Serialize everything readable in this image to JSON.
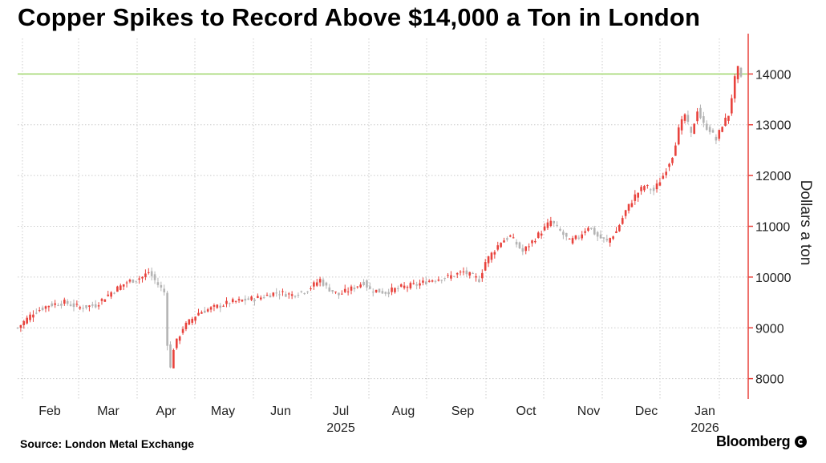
{
  "title": "Copper Spikes to Record Above $14,000 a Ton in London",
  "source": "Source: London Metal Exchange",
  "brand": "Bloomberg",
  "brand_icon": "bloomberg-mark-icon",
  "colors": {
    "up": "#e8423c",
    "down": "#b4b4b4",
    "record_line": "#9fd66b",
    "axis": "#e8423c",
    "grid": "#cccccc"
  },
  "chart_data": {
    "type": "candlestick",
    "title": "Copper Spikes to Record Above $14,000 a Ton in London",
    "ylabel": "Dollars a ton",
    "ylim": [
      7600,
      14700
    ],
    "yticks": [
      8000,
      9000,
      10000,
      11000,
      12000,
      13000,
      14000
    ],
    "y_axis_position": "right",
    "grid": true,
    "reference_line": 14000,
    "x_month_labels": [
      "Feb",
      "Mar",
      "Apr",
      "May",
      "Jun",
      "Jul",
      "Aug",
      "Sep",
      "Oct",
      "Nov",
      "Dec",
      "Jan"
    ],
    "x_year_labels": [
      {
        "under": "Jul",
        "label": "2025"
      },
      {
        "under": "Jan",
        "label": "2026"
      }
    ],
    "series_close": [
      {
        "month": "Jan-2025",
        "close": 9000
      },
      {
        "month": "Feb-2025",
        "close": 9450
      },
      {
        "month": "Mar-2025",
        "close": 10000
      },
      {
        "month": "Apr-2025",
        "close": 9350
      },
      {
        "month": "May-2025",
        "close": 9550
      },
      {
        "month": "Jun-2025",
        "close": 9700
      },
      {
        "month": "Jul-2025",
        "close": 9700
      },
      {
        "month": "Aug-2025",
        "close": 9800
      },
      {
        "month": "Sep-2025",
        "close": 10250
      },
      {
        "month": "Oct-2025",
        "close": 10900
      },
      {
        "month": "Nov-2025",
        "close": 10800
      },
      {
        "month": "Dec-2025",
        "close": 12500
      },
      {
        "month": "Jan-2026",
        "close": 14000
      }
    ],
    "anchors": [
      [
        0,
        9000
      ],
      [
        5,
        9300
      ],
      [
        10,
        9450
      ],
      [
        15,
        9500
      ],
      [
        20,
        9400
      ],
      [
        25,
        9450
      ],
      [
        30,
        9700
      ],
      [
        35,
        9900
      ],
      [
        40,
        10000
      ],
      [
        42,
        10100
      ],
      [
        45,
        9850
      ],
      [
        47,
        9700
      ],
      [
        48,
        8700
      ],
      [
        49,
        8200
      ],
      [
        50,
        8600
      ],
      [
        53,
        9000
      ],
      [
        58,
        9300
      ],
      [
        63,
        9400
      ],
      [
        68,
        9500
      ],
      [
        73,
        9550
      ],
      [
        78,
        9600
      ],
      [
        83,
        9700
      ],
      [
        88,
        9650
      ],
      [
        93,
        9750
      ],
      [
        97,
        9950
      ],
      [
        99,
        9800
      ],
      [
        103,
        9650
      ],
      [
        108,
        9800
      ],
      [
        111,
        9900
      ],
      [
        113,
        9750
      ],
      [
        118,
        9700
      ],
      [
        123,
        9800
      ],
      [
        128,
        9850
      ],
      [
        133,
        9950
      ],
      [
        138,
        10000
      ],
      [
        143,
        10100
      ],
      [
        148,
        9950
      ],
      [
        150,
        10300
      ],
      [
        155,
        10700
      ],
      [
        158,
        10800
      ],
      [
        162,
        10500
      ],
      [
        165,
        10700
      ],
      [
        168,
        10900
      ],
      [
        171,
        11100
      ],
      [
        174,
        10900
      ],
      [
        177,
        10700
      ],
      [
        180,
        10800
      ],
      [
        183,
        11000
      ],
      [
        186,
        10800
      ],
      [
        189,
        10700
      ],
      [
        192,
        10900
      ],
      [
        195,
        11300
      ],
      [
        198,
        11600
      ],
      [
        201,
        11800
      ],
      [
        204,
        11700
      ],
      [
        207,
        12000
      ],
      [
        210,
        12400
      ],
      [
        212,
        12900
      ],
      [
        214,
        13200
      ],
      [
        216,
        12800
      ],
      [
        218,
        13300
      ],
      [
        220,
        13000
      ],
      [
        222,
        12900
      ],
      [
        224,
        12700
      ],
      [
        226,
        13000
      ],
      [
        228,
        13200
      ],
      [
        230,
        13900
      ],
      [
        231,
        14100
      ],
      [
        232,
        13900
      ]
    ]
  }
}
